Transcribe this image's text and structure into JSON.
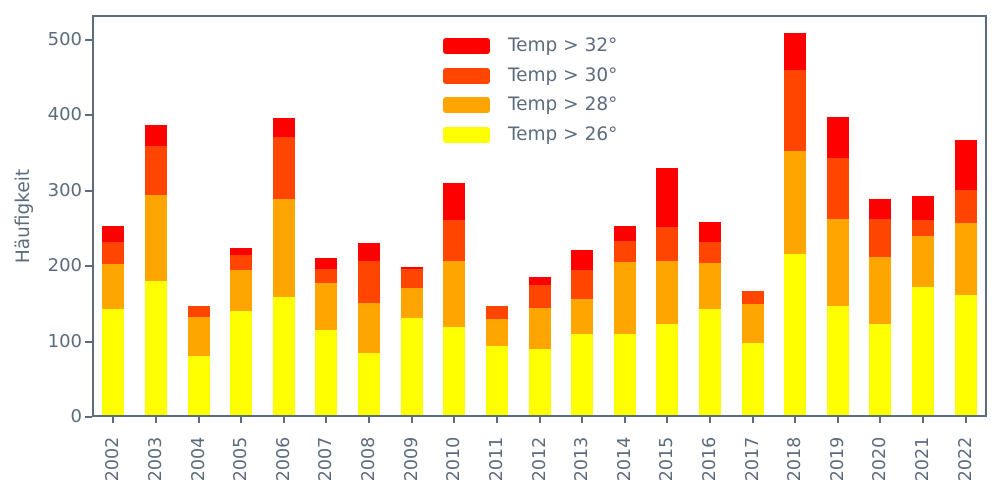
{
  "chart_data": {
    "type": "bar",
    "stacked": true,
    "title": "",
    "xlabel": "",
    "ylabel": "Häufigkeit",
    "yticks": [
      0,
      100,
      200,
      300,
      400,
      500
    ],
    "ylim": [
      0,
      533
    ],
    "grid": false,
    "legend_position": "upper center-right, no frame",
    "categories": [
      "2002",
      "2003",
      "2004",
      "2005",
      "2006",
      "2007",
      "2008",
      "2009",
      "2010",
      "2011",
      "2012",
      "2013",
      "2014",
      "2015",
      "2016",
      "2017",
      "2018",
      "2019",
      "2020",
      "2021",
      "2022"
    ],
    "series": [
      {
        "name": "Temp > 26°",
        "color": "#FFFF00",
        "values": [
          140,
          177,
          78,
          138,
          156,
          113,
          82,
          128,
          116,
          92,
          87,
          107,
          108,
          120,
          141,
          95,
          213,
          145,
          121,
          170,
          159
        ]
      },
      {
        "name": "Temp > 28°",
        "color": "#FFA500",
        "values": [
          60,
          115,
          52,
          54,
          130,
          62,
          67,
          40,
          88,
          35,
          55,
          47,
          95,
          84,
          61,
          52,
          137,
          115,
          88,
          67,
          95
        ]
      },
      {
        "name": "Temp > 30°",
        "color": "#FF4500",
        "values": [
          30,
          64,
          14,
          20,
          82,
          19,
          55,
          25,
          55,
          17,
          30,
          38,
          28,
          45,
          28,
          17,
          107,
          81,
          51,
          21,
          44
        ]
      },
      {
        "name": "Temp > 32°",
        "color": "#FF0000",
        "values": [
          20,
          28,
          0,
          9,
          26,
          14,
          24,
          3,
          49,
          0,
          11,
          27,
          19,
          78,
          26,
          0,
          50,
          54,
          27,
          32,
          66
        ]
      }
    ],
    "totals": [
      250,
      384,
      144,
      221,
      394,
      208,
      228,
      196,
      308,
      144,
      183,
      219,
      250,
      327,
      256,
      164,
      507,
      395,
      287,
      290,
      364
    ],
    "legend_order": [
      3,
      2,
      1,
      0
    ],
    "axis_color": "#5C6C7E",
    "text_color": "#5C6C7E",
    "background_color": "#FFFFFF"
  }
}
